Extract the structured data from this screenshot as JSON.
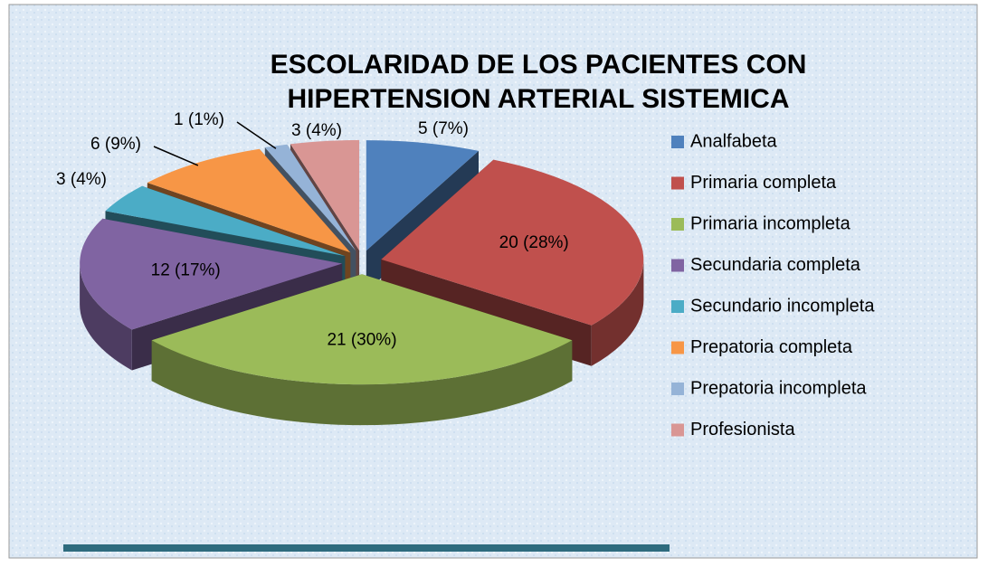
{
  "chart_data": {
    "type": "pie3d",
    "title_lines": [
      "ESCOLARIDAD DE LOS PACIENTES CON",
      "HIPERTENSION ARTERIAL SISTEMICA"
    ],
    "categories": [
      "Analfabeta",
      "Primaria completa",
      "Primaria incompleta",
      "Secundaria completa",
      "Secundario incompleta",
      "Prepatoria completa",
      "Prepatoria incompleta",
      "Profesionista"
    ],
    "values": [
      5,
      20,
      21,
      12,
      3,
      6,
      1,
      3
    ],
    "value_labels": [
      "5 (7%)",
      "20 (28%)",
      "21 (30%)",
      "12 (17%)",
      "3 (4%)",
      "6 (9%)",
      "1 (1%)",
      "3 (4%)"
    ],
    "colors": [
      "#4f81bd",
      "#c0504d",
      "#9bbb59",
      "#8064a2",
      "#4bacc6",
      "#f79646",
      "#95b3d7",
      "#d99694"
    ],
    "legend": "right"
  }
}
